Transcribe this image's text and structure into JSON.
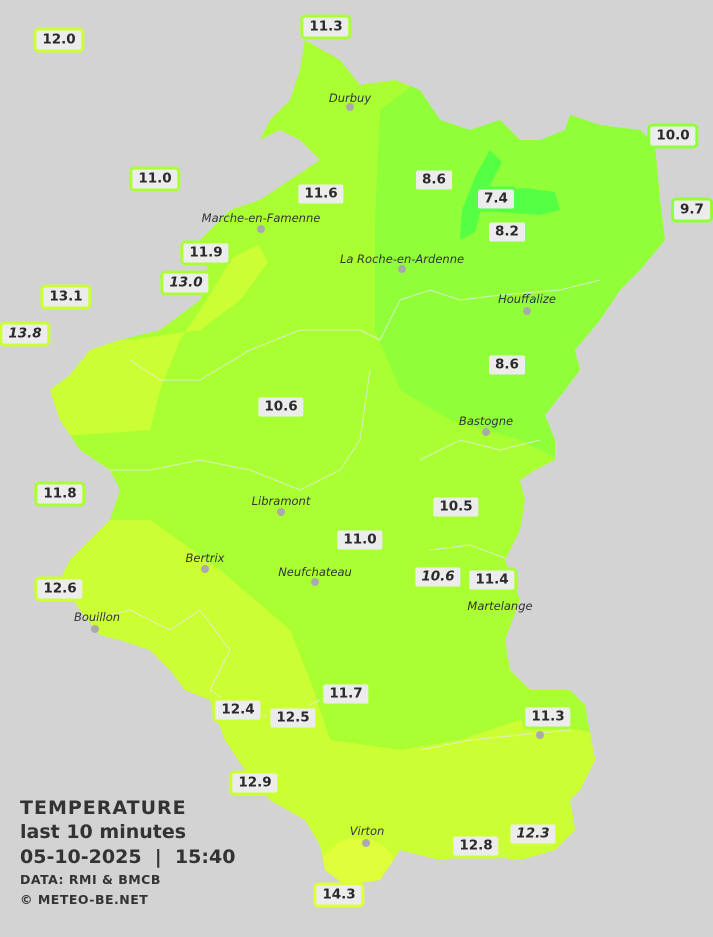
{
  "legend": {
    "title": "TEMPERATURE",
    "subtitle": "last 10 minutes",
    "datetime": "05-10-2025  |  15:40",
    "source": "DATA: RMI & BMCB",
    "copyright": "© METEO-BE.NET"
  },
  "colors": {
    "background": "#d3d3d3",
    "zone_14": "#e0ff3a",
    "zone_12": "#ccff33",
    "zone_10": "#aaff33",
    "zone_8": "#90ff3a",
    "zone_7": "#55ff44"
  },
  "cities": [
    "Durbuy",
    "Marche-en-Famenne",
    "La Roche-en-Ardenne",
    "Houffalize",
    "Bastogne",
    "Libramont",
    "Bertrix",
    "Neufchateau",
    "Bouillon",
    "Virton",
    "Martelange"
  ],
  "stations": [
    {
      "value": "12.0",
      "italic": false
    },
    {
      "value": "11.3",
      "italic": false
    },
    {
      "value": "10.0",
      "italic": false
    },
    {
      "value": "9.7",
      "italic": false
    },
    {
      "value": "11.0",
      "italic": false
    },
    {
      "value": "8.6",
      "italic": false
    },
    {
      "value": "7.4",
      "italic": false
    },
    {
      "value": "11.6",
      "italic": false
    },
    {
      "value": "8.2",
      "italic": false
    },
    {
      "value": "11.9",
      "italic": false
    },
    {
      "value": "13.0",
      "italic": true
    },
    {
      "value": "13.1",
      "italic": false
    },
    {
      "value": "13.8",
      "italic": true
    },
    {
      "value": "10.6",
      "italic": false
    },
    {
      "value": "8.6",
      "italic": false
    },
    {
      "value": "11.8",
      "italic": false
    },
    {
      "value": "10.5",
      "italic": false
    },
    {
      "value": "11.0",
      "italic": false
    },
    {
      "value": "12.6",
      "italic": false
    },
    {
      "value": "10.6",
      "italic": true
    },
    {
      "value": "11.4",
      "italic": false
    },
    {
      "value": "11.7",
      "italic": false
    },
    {
      "value": "12.4",
      "italic": false
    },
    {
      "value": "12.5",
      "italic": false
    },
    {
      "value": "11.3",
      "italic": false
    },
    {
      "value": "12.9",
      "italic": false
    },
    {
      "value": "12.8",
      "italic": false
    },
    {
      "value": "12.3",
      "italic": true
    },
    {
      "value": "14.3",
      "italic": false
    }
  ]
}
